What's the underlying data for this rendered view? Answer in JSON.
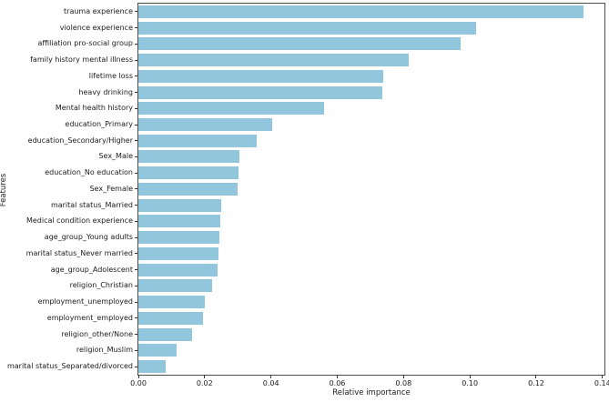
{
  "figure": {
    "bar_color": "#92c6dd",
    "spine_color": "#4d4d4d",
    "text_color": "#1a1a1a",
    "background_color": "#ffffff"
  },
  "chart_data": {
    "type": "bar",
    "orientation": "horizontal",
    "xlabel": "Relative importance",
    "ylabel": "Features",
    "xlim": [
      0,
      0.1406
    ],
    "xticks": [
      0.0,
      0.02,
      0.04,
      0.06,
      0.08,
      0.1,
      0.12,
      0.14
    ],
    "grid": false,
    "legend": false,
    "categories": [
      "trauma experience",
      "violence experience",
      "affiliation pro-social group",
      "family history mental illness",
      "lifetime loss",
      "heavy drinking",
      "Mental health history",
      "education_Primary",
      "education_Secondary/Higher",
      "Sex_Male",
      "education_No education",
      "Sex_Female",
      "marital status_Married",
      "Medical condition experience",
      "age_group_Young adults",
      "marital status_Never married",
      "age_group_Adolescent",
      "religion_Christian",
      "employment_unemployed",
      "employment_employed",
      "religion_other/None",
      "religion_Muslim",
      "marital status_Separated/divorced"
    ],
    "values": [
      0.1344,
      0.102,
      0.0971,
      0.0816,
      0.0739,
      0.0735,
      0.056,
      0.0404,
      0.0357,
      0.0304,
      0.0302,
      0.0299,
      0.0251,
      0.0248,
      0.0244,
      0.0241,
      0.0238,
      0.0223,
      0.02,
      0.0196,
      0.0161,
      0.0116,
      0.0082
    ]
  }
}
